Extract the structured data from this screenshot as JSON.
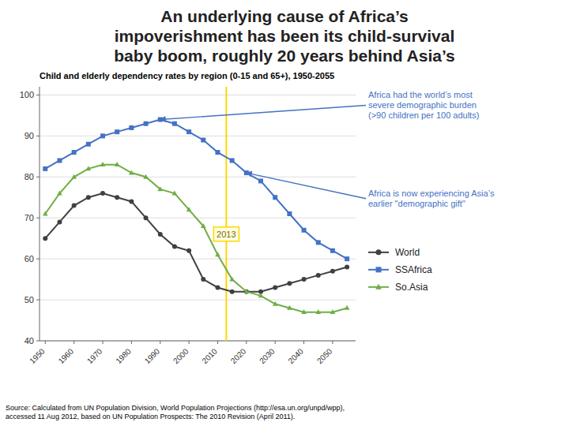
{
  "chart_data": {
    "type": "line",
    "title": "An underlying cause of Africa’s\nimpoverishment has been its child-survival\nbaby boom, roughly 20 years behind Asia’s",
    "subtitle": "Child and elderly dependency rates by region (0-15 and 65+), 1950-2055",
    "source": "Source: Calculated from UN Population Division, World Population Projections (http://esa.un.org/unpd/wpp),\naccessed 11 Aug 2012, based on UN Population Prospects: The 2010 Revision (April 2011).",
    "x": [
      1950,
      1955,
      1960,
      1965,
      1970,
      1975,
      1980,
      1985,
      1990,
      1995,
      2000,
      2005,
      2010,
      2015,
      2020,
      2025,
      2030,
      2035,
      2040,
      2045,
      2050,
      2055
    ],
    "series": [
      {
        "name": "World",
        "color": "#404040",
        "marker": "circle",
        "values": [
          65,
          69,
          73,
          75,
          76,
          75,
          74,
          70,
          66,
          63,
          62,
          55,
          53,
          52,
          52,
          52,
          53,
          54,
          55,
          56,
          57,
          58
        ]
      },
      {
        "name": "SSAfrica",
        "color": "#4472C4",
        "marker": "square",
        "values": [
          82,
          84,
          86,
          88,
          90,
          91,
          92,
          93,
          94,
          93,
          91,
          89,
          86,
          84,
          81,
          79,
          75,
          71,
          67,
          64,
          62,
          60
        ]
      },
      {
        "name": "So.Asia",
        "color": "#70AD47",
        "marker": "triangle",
        "values": [
          71,
          76,
          80,
          82,
          83,
          83,
          81,
          80,
          77,
          76,
          72,
          68,
          61,
          55,
          52,
          51,
          49,
          48,
          47,
          47,
          47,
          48
        ]
      }
    ],
    "reference_lines": [
      {
        "x": 2013,
        "label": "2013",
        "color": "#FFD700"
      }
    ],
    "annotations": [
      {
        "text": "Africa had the world’s most\nsevere demographic burden\n(>90 children per 100 adults)",
        "x": 1990,
        "y": 94
      },
      {
        "text": "Africa is now experiencing Asia’s\nearlier \"demographic gift\"",
        "x": 2020,
        "y": 81
      }
    ],
    "xlim": [
      1948,
      2058
    ],
    "ylim": [
      40,
      102
    ],
    "xticks": [
      1950,
      1960,
      1970,
      1980,
      1990,
      2000,
      2010,
      2020,
      2030,
      2040,
      2050
    ],
    "yticks": [
      40,
      50,
      60,
      70,
      80,
      90,
      100
    ],
    "grid": true,
    "legend": "right"
  }
}
